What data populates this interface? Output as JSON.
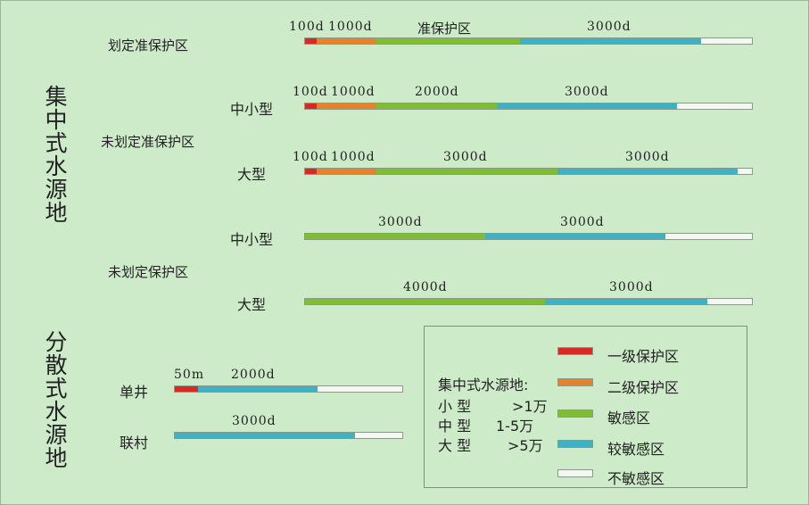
{
  "colors": {
    "level1": "#d62a25",
    "level2": "#e8822a",
    "sensitive": "#7fbd33",
    "less_sensitive": "#3fb1c7",
    "not_sensitive": "#f4f7f2"
  },
  "groups": {
    "centralized": "集中式水源地",
    "dispersed": "分散式水源地"
  },
  "subgroups": {
    "delimited": "划定准保护区",
    "not_delimited_quasi": "未划定准保护区",
    "not_delimited": "未划定保护区"
  },
  "types": {
    "small_medium": "中小型",
    "large": "大型",
    "single_well": "单井",
    "village": "联村"
  },
  "rows": [
    {
      "labels": [
        "100d",
        "1000d",
        "准保护区",
        "3000d"
      ]
    },
    {
      "labels": [
        "100d",
        "1000d",
        "2000d",
        "3000d"
      ]
    },
    {
      "labels": [
        "100d",
        "1000d",
        "3000d",
        "3000d"
      ]
    },
    {
      "labels": [
        "3000d",
        "3000d"
      ]
    },
    {
      "labels": [
        "4000d",
        "3000d"
      ]
    },
    {
      "labels": [
        "50m",
        "2000d"
      ]
    },
    {
      "labels": [
        "3000d"
      ]
    }
  ],
  "legend": {
    "scale_title": "集中式水源地:",
    "scale": [
      {
        "type": "小 型",
        "range": ">1万"
      },
      {
        "type": "中 型",
        "range": "1-5万"
      },
      {
        "type": "大 型",
        "range": ">5万"
      }
    ],
    "items": [
      "一级保护区",
      "二级保护区",
      "敏感区",
      "较敏感区",
      "不敏感区"
    ]
  }
}
